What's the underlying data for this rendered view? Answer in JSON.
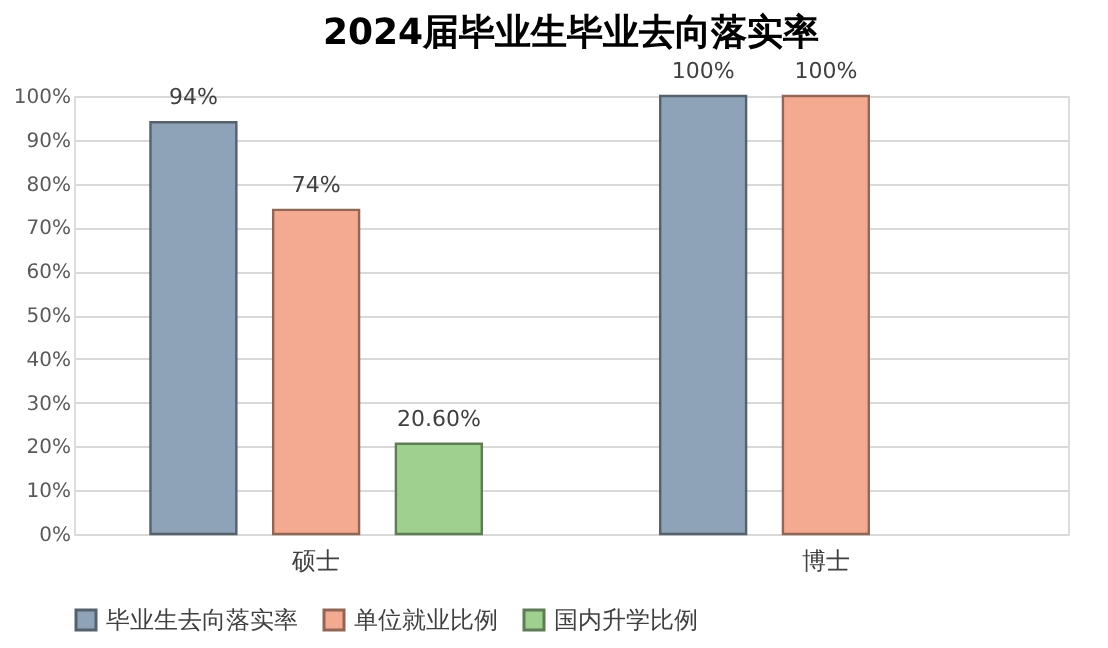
{
  "chart_data": {
    "type": "bar",
    "title": "2024届毕业生毕业去向落实率",
    "categories": [
      "硕士",
      "博士"
    ],
    "series": [
      {
        "name": "毕业生去向落实率",
        "color": "#8ea3b7",
        "values": [
          94,
          100
        ],
        "value_labels": [
          "94%",
          "100%"
        ]
      },
      {
        "name": "单位就业比例",
        "color": "#f3aa90",
        "values": [
          74,
          100
        ],
        "value_labels": [
          "74%",
          "100%"
        ]
      },
      {
        "name": "国内升学比例",
        "color": "#9fd08f",
        "values": [
          20.6,
          null
        ],
        "value_labels": [
          "20.60%",
          null
        ]
      }
    ],
    "ylim": [
      0,
      100
    ],
    "yticks": [
      {
        "value": 0,
        "label": "0%"
      },
      {
        "value": 10,
        "label": "10%"
      },
      {
        "value": 20,
        "label": "20%"
      },
      {
        "value": 30,
        "label": "30%"
      },
      {
        "value": 40,
        "label": "40%"
      },
      {
        "value": 50,
        "label": "50%"
      },
      {
        "value": 60,
        "label": "60%"
      },
      {
        "value": 70,
        "label": "70%"
      },
      {
        "value": 80,
        "label": "80%"
      },
      {
        "value": 90,
        "label": "90%"
      },
      {
        "value": 100,
        "label": "100%"
      }
    ],
    "grid": "y",
    "legend": "bottom"
  }
}
